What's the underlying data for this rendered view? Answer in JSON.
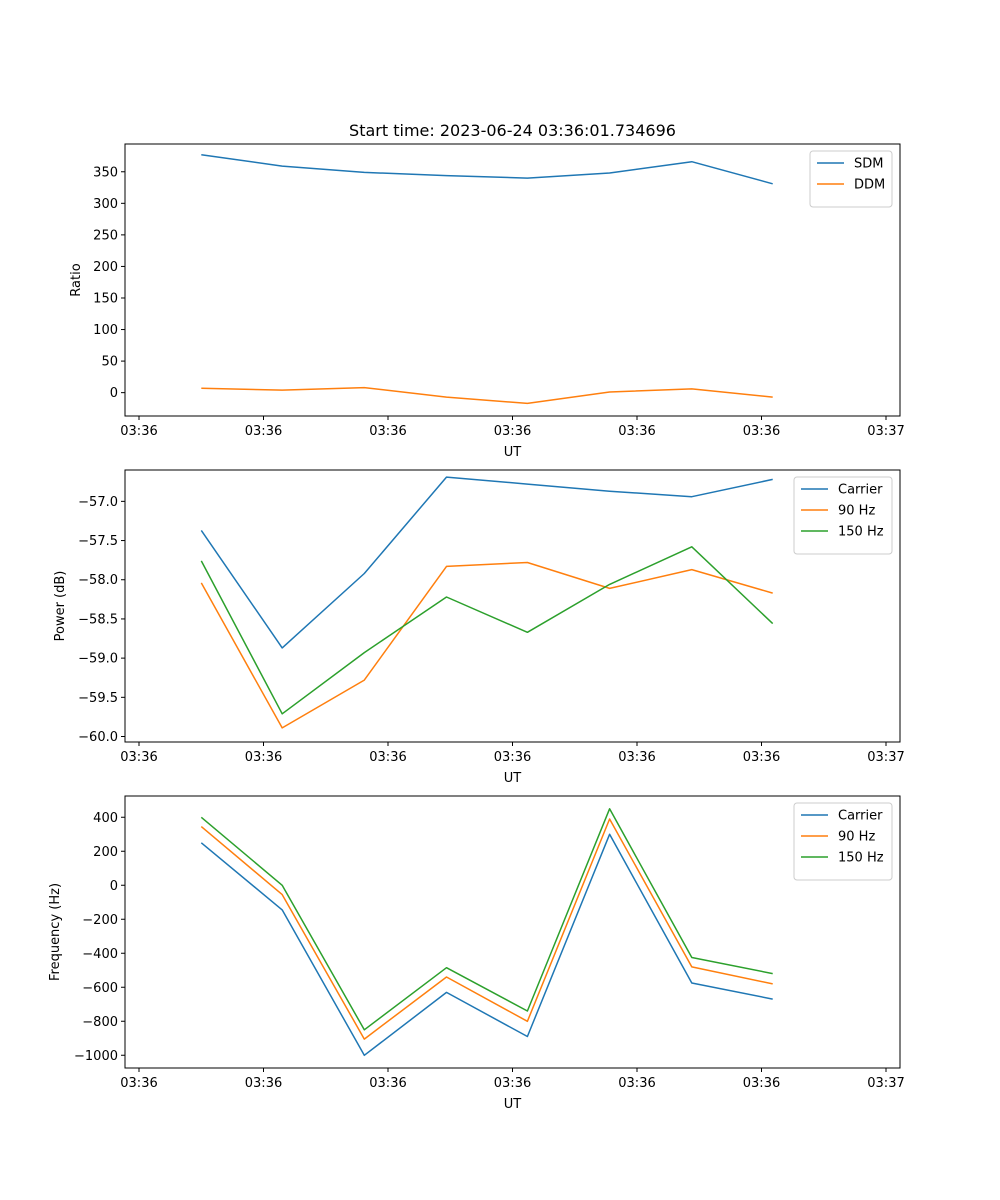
{
  "figure": {
    "title": "Start time: 2023-06-24 03:36:01.734696"
  },
  "chart_data": [
    {
      "type": "line",
      "xlabel": "UT",
      "ylabel": "Ratio",
      "x_tick_labels": [
        "03:36",
        "03:36",
        "03:36",
        "03:36",
        "03:36",
        "03:36",
        "03:37"
      ],
      "xlim": [
        0,
        6
      ],
      "ylim": [
        -37,
        394
      ],
      "y_ticks": [
        0,
        50,
        100,
        150,
        200,
        250,
        300,
        350
      ],
      "x": [
        0.5,
        1.15,
        1.81,
        2.47,
        3.12,
        3.78,
        4.44,
        5.09
      ],
      "legend_position": "top-right",
      "series": [
        {
          "name": "SDM",
          "color": "#1f77b4",
          "values": [
            377,
            359,
            349,
            344,
            340,
            348,
            366,
            331
          ]
        },
        {
          "name": "DDM",
          "color": "#ff7f0e",
          "values": [
            7,
            4,
            8,
            -7,
            -17,
            1,
            6,
            -7
          ]
        }
      ]
    },
    {
      "type": "line",
      "xlabel": "UT",
      "ylabel": "Power (dB)",
      "x_tick_labels": [
        "03:36",
        "03:36",
        "03:36",
        "03:36",
        "03:36",
        "03:36",
        "03:37"
      ],
      "xlim": [
        0,
        6
      ],
      "ylim": [
        -60.07,
        -56.6
      ],
      "y_ticks": [
        -60.0,
        -59.5,
        -59.0,
        -58.5,
        -58.0,
        -57.5,
        -57.0
      ],
      "y_tick_labels": [
        "−60.0",
        "−59.5",
        "−59.0",
        "−58.5",
        "−58.0",
        "−57.5",
        "−57.0"
      ],
      "x": [
        0.5,
        1.15,
        1.81,
        2.47,
        3.12,
        3.78,
        4.44,
        5.09
      ],
      "legend_position": "top-right",
      "series": [
        {
          "name": "Carrier",
          "color": "#1f77b4",
          "values": [
            -57.37,
            -58.87,
            -57.92,
            -56.69,
            -56.78,
            -56.87,
            -56.94,
            -56.72
          ]
        },
        {
          "name": "90 Hz",
          "color": "#ff7f0e",
          "values": [
            -58.04,
            -59.89,
            -59.28,
            -57.83,
            -57.78,
            -58.11,
            -57.87,
            -58.17
          ]
        },
        {
          "name": "150 Hz",
          "color": "#2ca02c",
          "values": [
            -57.76,
            -59.71,
            -58.93,
            -58.22,
            -58.67,
            -58.06,
            -57.58,
            -58.56
          ]
        }
      ]
    },
    {
      "type": "line",
      "xlabel": "UT",
      "ylabel": "Frequency (Hz)",
      "x_tick_labels": [
        "03:36",
        "03:36",
        "03:36",
        "03:36",
        "03:36",
        "03:36",
        "03:37"
      ],
      "xlim": [
        0,
        6
      ],
      "ylim": [
        -1075,
        525
      ],
      "y_ticks": [
        -1000,
        -800,
        -600,
        -400,
        -200,
        0,
        200,
        400
      ],
      "y_tick_labels": [
        "−1000",
        "−800",
        "−600",
        "−400",
        "−200",
        "0",
        "200",
        "400"
      ],
      "x": [
        0.5,
        1.15,
        1.81,
        2.47,
        3.12,
        3.78,
        4.44,
        5.09
      ],
      "legend_position": "top-right",
      "series": [
        {
          "name": "Carrier",
          "color": "#1f77b4",
          "values": [
            250,
            -145,
            -1000,
            -630,
            -890,
            300,
            -575,
            -670
          ]
        },
        {
          "name": "90 Hz",
          "color": "#ff7f0e",
          "values": [
            345,
            -55,
            -905,
            -540,
            -800,
            390,
            -480,
            -580
          ]
        },
        {
          "name": "150 Hz",
          "color": "#2ca02c",
          "values": [
            400,
            0,
            -850,
            -485,
            -740,
            450,
            -425,
            -520
          ]
        }
      ]
    }
  ]
}
